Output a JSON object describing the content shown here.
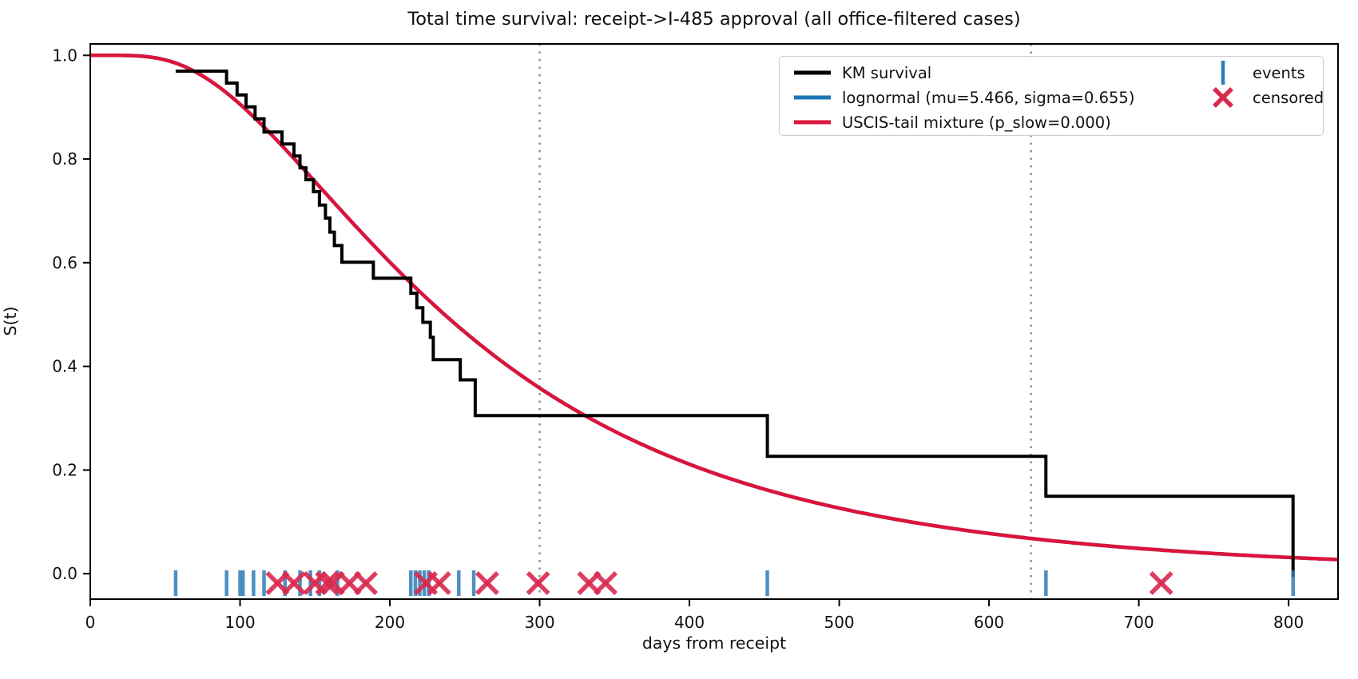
{
  "title": "Total time survival: receipt->I-485 approval (all office-filtered cases)",
  "axes": {
    "xlabel": "days from receipt",
    "ylabel": "S(t)",
    "x_ticks": [
      0,
      100,
      200,
      300,
      400,
      500,
      600,
      700,
      800
    ],
    "y_ticks": [
      0.0,
      0.2,
      0.4,
      0.6,
      0.8,
      1.0
    ],
    "xlim": [
      0,
      833
    ],
    "ylim": [
      -0.049,
      1.022
    ]
  },
  "colors": {
    "km": "#000000",
    "lognormal": "#1f77b4",
    "mixture": "#dc143c",
    "events": "#2e7cb8",
    "censored": "#d92a4e",
    "vline": "#8e8e8e",
    "spine": "#000000",
    "legend_border": "#cccccc"
  },
  "legend": {
    "entries": [
      {
        "label": "KM survival",
        "sample": "line",
        "color": "#000000"
      },
      {
        "label": "lognormal (mu=5.466, sigma=0.655)",
        "sample": "line",
        "color": "#1f77b4"
      },
      {
        "label": "USCIS-tail mixture (p_slow=0.000)",
        "sample": "line",
        "color": "#dc143c"
      },
      {
        "label": "events",
        "sample": "vtick",
        "color": "#2e7cb8"
      },
      {
        "label": "censored",
        "sample": "x",
        "color": "#d92a4e"
      }
    ]
  },
  "chart_data": {
    "type": "line",
    "title": "Total time survival: receipt->I-485 approval (all office-filtered cases)",
    "xlabel": "days from receipt",
    "ylabel": "S(t)",
    "xlim": [
      0,
      833
    ],
    "ylim": [
      -0.049,
      1.022
    ],
    "grid": false,
    "legend_position": "upper right",
    "series": [
      {
        "name": "KM survival",
        "type": "step",
        "color": "#000000",
        "start": [
          57,
          0.9695
        ],
        "steps": [
          [
            91,
            0.9465
          ],
          [
            98,
            0.9235
          ],
          [
            104,
            0.9005
          ],
          [
            110,
            0.8775
          ],
          [
            116,
            0.852
          ],
          [
            128,
            0.829
          ],
          [
            136,
            0.806
          ],
          [
            140,
            0.783
          ],
          [
            144,
            0.76
          ],
          [
            149,
            0.737
          ],
          [
            153,
            0.711
          ],
          [
            157,
            0.686
          ],
          [
            160,
            0.659
          ],
          [
            163,
            0.633
          ],
          [
            168,
            0.601
          ],
          [
            189,
            0.57
          ],
          [
            214,
            0.541
          ],
          [
            218,
            0.513
          ],
          [
            222,
            0.485
          ],
          [
            227,
            0.456
          ],
          [
            229,
            0.413
          ],
          [
            247,
            0.374
          ],
          [
            257,
            0.305
          ],
          [
            452,
            0.2265
          ],
          [
            638,
            0.1495
          ],
          [
            803,
            -0.006
          ]
        ]
      },
      {
        "name": "lognormal (mu=5.466, sigma=0.655)",
        "type": "lognormal_survival",
        "color": "#1f77b4",
        "mu": 5.466,
        "sigma": 0.655
      },
      {
        "name": "USCIS-tail mixture (p_slow=0.000)",
        "type": "lognormal_survival",
        "color": "#dc143c",
        "mu": 5.466,
        "sigma": 0.655,
        "p_slow": 0.0
      }
    ],
    "events_days": [
      57,
      91,
      100,
      102,
      109,
      116,
      130,
      140,
      147,
      153,
      165,
      214,
      217,
      220,
      223,
      226,
      246,
      256,
      452,
      638,
      803
    ],
    "censored_days": [
      125,
      136,
      150,
      158,
      162,
      173,
      184,
      224,
      233,
      265,
      299,
      333,
      344,
      715
    ],
    "reference_vlines": [
      300,
      628
    ]
  }
}
